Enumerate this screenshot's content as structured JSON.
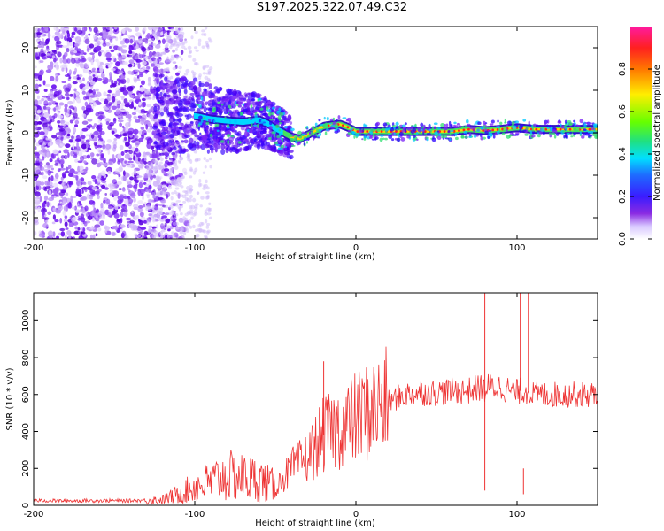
{
  "title": "S197.2025.322.07.49.C32",
  "chart_data": [
    {
      "type": "heatmap",
      "name": "spectrogram",
      "xlabel": "Height of straight line (km)",
      "ylabel": "Frequency (Hz)",
      "xlim": [
        -200,
        150
      ],
      "ylim": [
        -25,
        25
      ],
      "xticks": [
        -200,
        -100,
        0,
        100
      ],
      "yticks": [
        -20,
        -10,
        0,
        10,
        20
      ],
      "colorbar": {
        "label": "Normalized spectral amplitude",
        "range": [
          0,
          1
        ],
        "ticks": [
          0,
          0.2,
          0.4,
          0.6,
          0.8
        ]
      },
      "ridge": {
        "x": [
          -100,
          -90,
          -80,
          -70,
          -60,
          -55,
          -50,
          -45,
          -40,
          -35,
          -30,
          -25,
          -20,
          -15,
          -10,
          -5,
          0,
          10,
          20,
          30,
          40,
          50,
          60,
          70,
          80,
          90,
          100,
          110,
          120,
          130,
          140,
          150
        ],
        "y": [
          4,
          3.2,
          2.8,
          2.5,
          3,
          2.2,
          1,
          0,
          -1,
          -1.5,
          -0.5,
          0.5,
          1.5,
          1.8,
          2,
          1.3,
          0.3,
          0.3,
          0.3,
          0.3,
          0.3,
          0.3,
          0.3,
          0.8,
          0.5,
          0.8,
          1.2,
          0.8,
          0.8,
          0.8,
          0.8,
          0.8
        ]
      }
    },
    {
      "type": "line",
      "name": "snr",
      "xlabel": "Height of straight line (km)",
      "ylabel": "SNR (10 * v/v)",
      "xlim": [
        -200,
        150
      ],
      "ylim": [
        0,
        1150
      ],
      "xticks": [
        -200,
        -100,
        0,
        100
      ],
      "yticks": [
        0,
        200,
        400,
        600,
        800,
        1000
      ],
      "series": [
        {
          "name": "SNR",
          "color": "#ee3333",
          "x": [
            -200,
            -180,
            -160,
            -140,
            -120,
            -110,
            -100,
            -90,
            -80,
            -70,
            -60,
            -50,
            -40,
            -30,
            -20,
            -10,
            0,
            10,
            20,
            30,
            40,
            50,
            60,
            70,
            78,
            80,
            82,
            90,
            100,
            102,
            104,
            106,
            108,
            110,
            120,
            130,
            140,
            150
          ],
          "y": [
            25,
            25,
            25,
            25,
            30,
            60,
            100,
            130,
            160,
            150,
            140,
            100,
            200,
            260,
            380,
            420,
            470,
            520,
            560,
            600,
            610,
            610,
            620,
            620,
            640,
            1150,
            640,
            640,
            610,
            1150,
            200,
            1150,
            620,
            600,
            600,
            600,
            600,
            600
          ]
        }
      ],
      "spikes": [
        {
          "x": -20,
          "y": 780
        },
        {
          "x": 80,
          "y": 1150
        },
        {
          "x": 80,
          "y": 80
        },
        {
          "x": 102,
          "y": 1150
        },
        {
          "x": 104,
          "y": 60
        },
        {
          "x": 107,
          "y": 1150
        }
      ]
    }
  ]
}
